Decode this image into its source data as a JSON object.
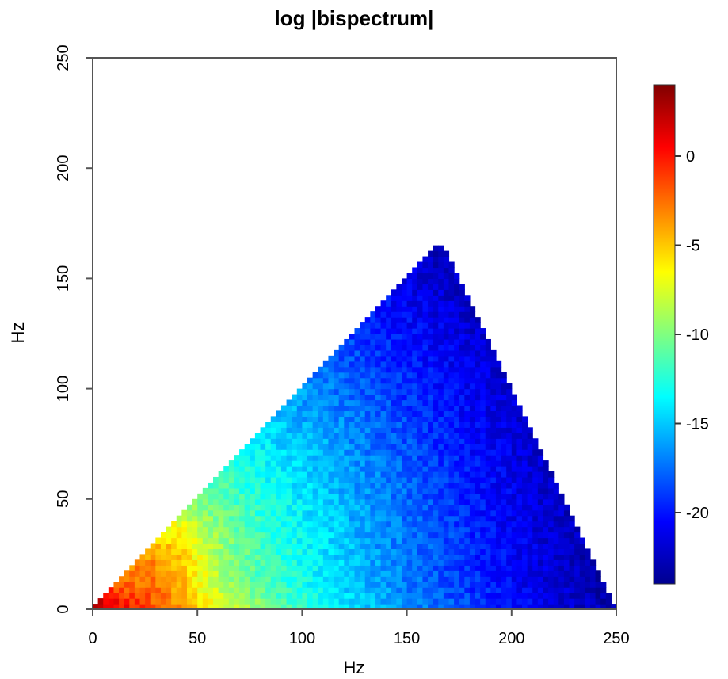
{
  "chart_data": {
    "type": "heatmap",
    "title": "log |bispectrum|",
    "xlabel": "Hz",
    "ylabel": "Hz",
    "xlim": [
      0,
      250
    ],
    "ylim": [
      0,
      250
    ],
    "x_ticks": [
      "0",
      "50",
      "100",
      "150",
      "200",
      "250"
    ],
    "y_ticks": [
      "0",
      "50",
      "100",
      "150",
      "200",
      "250"
    ],
    "region": {
      "shape": "triangle",
      "vertices": [
        [
          0,
          0
        ],
        [
          250,
          0
        ],
        [
          166,
          166
        ]
      ]
    },
    "colorbar": {
      "range": [
        -24,
        4
      ],
      "ticks": [
        "0",
        "-5",
        "-10",
        "-15",
        "-20"
      ],
      "colormap": [
        "#00008F",
        "#0000FF",
        "#0080FF",
        "#00FFFF",
        "#80FF80",
        "#FFFF00",
        "#FF8000",
        "#FF0000",
        "#800000"
      ]
    },
    "grid": false,
    "legend": "right"
  }
}
